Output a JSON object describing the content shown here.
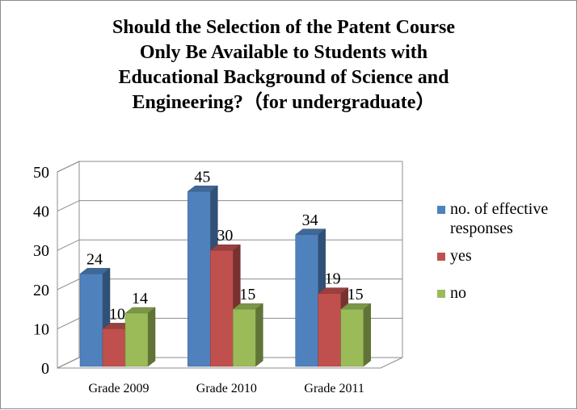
{
  "chart_data": {
    "type": "bar",
    "title_lines": [
      "Should the Selection of the Patent Course",
      "Only Be Available to Students with",
      "Educational Background  of Science and",
      "Engineering?（for undergraduate）"
    ],
    "categories": [
      "Grade 2009",
      "Grade 2010",
      "Grade 2011"
    ],
    "series": [
      {
        "name": "no. of effective responses",
        "values": [
          24,
          45,
          34
        ],
        "color": "#4F81BD"
      },
      {
        "name": "yes",
        "values": [
          10,
          30,
          19
        ],
        "color": "#C0504D"
      },
      {
        "name": "no",
        "values": [
          14,
          15,
          15
        ],
        "color": "#9BBB59"
      }
    ],
    "ylim": [
      0,
      50
    ],
    "yticks": [
      0,
      10,
      20,
      30,
      40,
      50
    ],
    "grid": true,
    "style": "3d-clustered-column",
    "legend_position": "right"
  }
}
